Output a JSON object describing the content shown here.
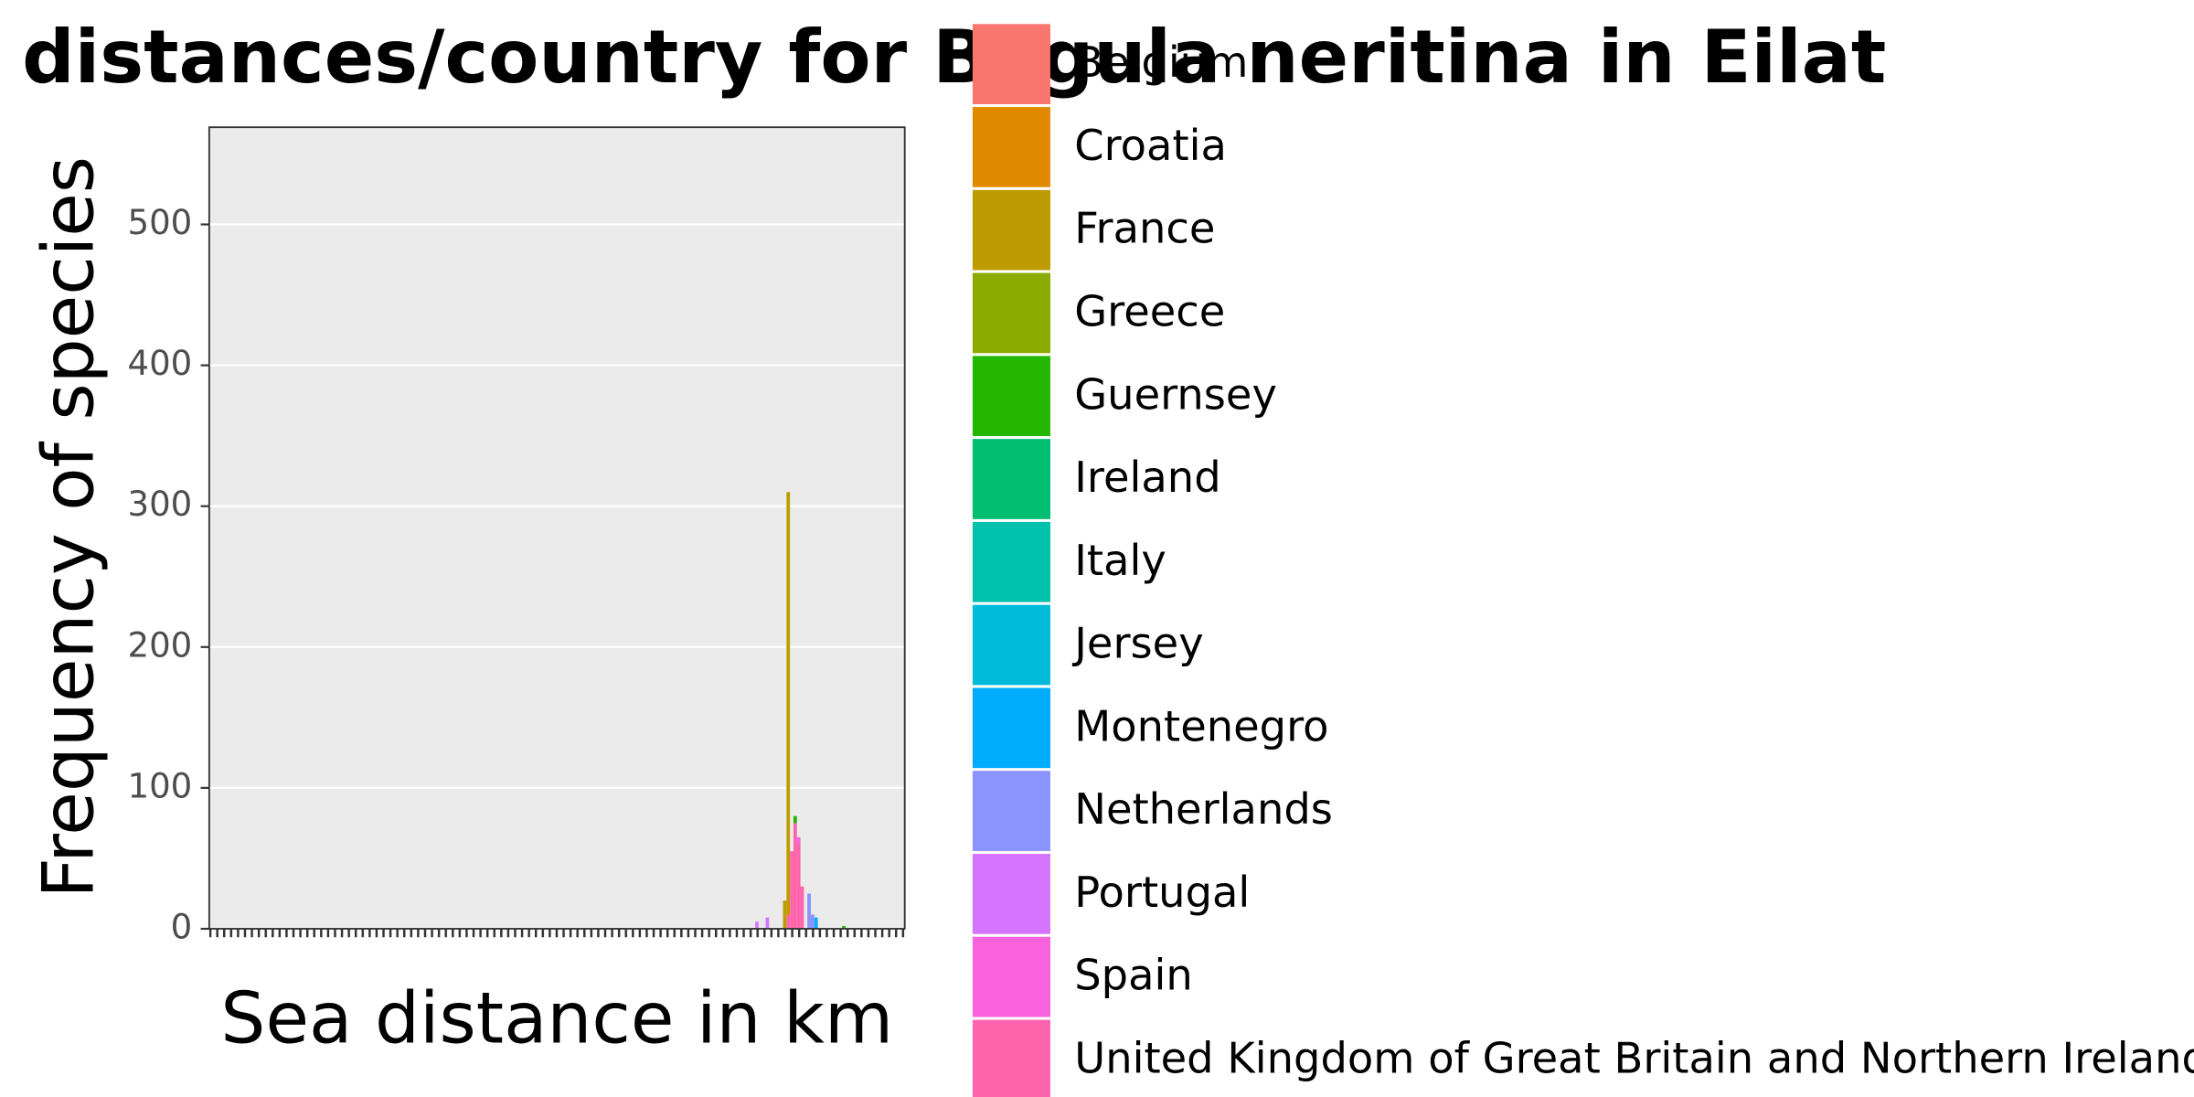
{
  "chart_data": {
    "type": "histogram",
    "title": "Sea distances/country for Bugula neritina in Eilat",
    "x_label": "Sea distance in km",
    "y_label": "Frequency of species",
    "bins": [
      3900,
      3925,
      3950,
      3975,
      4000,
      4025,
      4050,
      4075,
      4100,
      4125,
      4150,
      4175,
      4200,
      4225,
      4250,
      4275,
      4300,
      4325,
      4350,
      4375,
      4400,
      4425,
      4450,
      4475,
      4500,
      4525,
      4550,
      4575,
      4600
    ],
    "xlim": [
      0,
      5000
    ],
    "ylim": [
      0,
      569
    ],
    "yticks": [
      0,
      100,
      200,
      300,
      400,
      500
    ],
    "grid": true,
    "stacked": true,
    "series": [
      {
        "name": "Belgium",
        "color": "#F8766D",
        "values": [
          0,
          0,
          0,
          0,
          0,
          0,
          0,
          0,
          0,
          0,
          0,
          0,
          0,
          0,
          0,
          0,
          0,
          0,
          0,
          0,
          0,
          0,
          0,
          0,
          0,
          0,
          0,
          0
        ]
      },
      {
        "name": "Croatia",
        "color": "#E18A00",
        "values": [
          0,
          0,
          0,
          0,
          0,
          0,
          0,
          0,
          0,
          0,
          0,
          0,
          0,
          0,
          0,
          0,
          0,
          0,
          0,
          0,
          0,
          0,
          0,
          0,
          0,
          0,
          0,
          0
        ]
      },
      {
        "name": "France",
        "color": "#BE9C00",
        "values": [
          0,
          0,
          0,
          0,
          0,
          0,
          0,
          0,
          0,
          20,
          300,
          0,
          0,
          0,
          0,
          0,
          0,
          0,
          0,
          0,
          0,
          0,
          0,
          0,
          0,
          0,
          0,
          0
        ]
      },
      {
        "name": "Greece",
        "color": "#8CAB00",
        "values": [
          0,
          0,
          0,
          0,
          0,
          0,
          0,
          0,
          0,
          0,
          0,
          0,
          0,
          0,
          0,
          0,
          0,
          0,
          0,
          0,
          0,
          0,
          0,
          0,
          0,
          0,
          0,
          0
        ]
      },
      {
        "name": "Guernsey",
        "color": "#24B700",
        "values": [
          0,
          0,
          0,
          0,
          0,
          0,
          0,
          0,
          0,
          0,
          0,
          0,
          5,
          0,
          0,
          0,
          0,
          0,
          0,
          0,
          0,
          0,
          0,
          0,
          0,
          0,
          2,
          0
        ]
      },
      {
        "name": "Ireland",
        "color": "#00BE70",
        "values": [
          0,
          0,
          0,
          0,
          0,
          0,
          0,
          0,
          0,
          0,
          0,
          0,
          0,
          0,
          0,
          0,
          0,
          0,
          0,
          0,
          0,
          0,
          0,
          0,
          0,
          0,
          0,
          0
        ]
      },
      {
        "name": "Italy",
        "color": "#00C1AB",
        "values": [
          0,
          0,
          0,
          0,
          0,
          0,
          0,
          0,
          0,
          0,
          0,
          0,
          0,
          0,
          0,
          0,
          0,
          0,
          0,
          0,
          0,
          0,
          0,
          0,
          0,
          0,
          0,
          0
        ]
      },
      {
        "name": "Jersey",
        "color": "#00BBDA",
        "values": [
          0,
          0,
          0,
          0,
          0,
          0,
          0,
          0,
          0,
          0,
          0,
          0,
          0,
          0,
          0,
          0,
          0,
          0,
          0,
          0,
          0,
          0,
          0,
          0,
          0,
          0,
          0,
          0
        ]
      },
      {
        "name": "Montenegro",
        "color": "#00ACFC",
        "values": [
          0,
          0,
          0,
          0,
          0,
          0,
          0,
          0,
          0,
          0,
          0,
          0,
          0,
          0,
          0,
          0,
          0,
          0,
          8,
          0,
          0,
          0,
          0,
          0,
          0,
          0,
          0,
          0
        ]
      },
      {
        "name": "Netherlands",
        "color": "#8B93FF",
        "values": [
          0,
          0,
          0,
          0,
          0,
          0,
          0,
          0,
          0,
          0,
          0,
          0,
          0,
          0,
          0,
          0,
          25,
          10,
          0,
          0,
          0,
          0,
          0,
          0,
          0,
          0,
          0,
          0
        ]
      },
      {
        "name": "Portugal",
        "color": "#D575FE",
        "values": [
          0,
          5,
          0,
          0,
          8,
          0,
          0,
          0,
          0,
          0,
          0,
          0,
          0,
          0,
          0,
          0,
          0,
          0,
          0,
          0,
          0,
          0,
          0,
          0,
          0,
          0,
          0,
          0
        ]
      },
      {
        "name": "Spain",
        "color": "#F962DD",
        "values": [
          0,
          0,
          0,
          0,
          0,
          0,
          0,
          0,
          0,
          0,
          0,
          0,
          0,
          5,
          0,
          0,
          0,
          0,
          0,
          0,
          0,
          0,
          0,
          0,
          0,
          0,
          0,
          0
        ]
      },
      {
        "name": "United Kingdom of Great Britain and Northern Ireland",
        "color": "#FF65AC",
        "values": [
          0,
          0,
          0,
          0,
          0,
          0,
          0,
          0,
          0,
          0,
          10,
          55,
          75,
          60,
          30,
          0,
          0,
          0,
          0,
          0,
          0,
          0,
          0,
          0,
          0,
          0,
          0,
          0
        ]
      }
    ]
  }
}
